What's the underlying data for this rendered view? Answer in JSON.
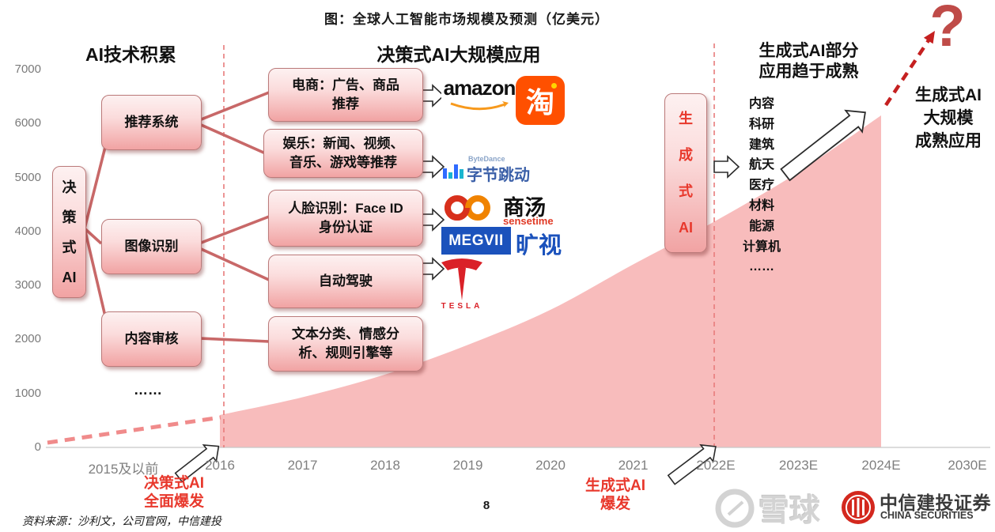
{
  "title": "图：全球人工智能市场规模及预测（亿美元）",
  "page_number": "8",
  "source_note": "资料来源：沙利文，公司官网，中信建投",
  "colors": {
    "area_fill": "#f8bcbc",
    "dashed_guide": "#e87b7b",
    "trend_dash": "#f08b8b",
    "connector": "#c86868",
    "red_text": "#e8382c",
    "question_mark": "#bf4b48",
    "red_dashed_arrow": "#c52020",
    "axis_label": "#7f7f7f",
    "box_border": "#bb7a7a"
  },
  "sections": {
    "left": {
      "heading": "AI技术积累",
      "root_box": [
        "决",
        "策",
        "式",
        "AI"
      ],
      "boxes": [
        "推荐系统",
        "图像识别",
        "内容审核"
      ],
      "more": "……"
    },
    "middle": {
      "heading": "决策式AI大规模应用",
      "boxes": [
        {
          "lines": [
            "电商：广告、商品",
            "推荐"
          ]
        },
        {
          "lines": [
            "娱乐：新闻、视频、",
            "音乐、游戏等推荐"
          ]
        },
        {
          "lines": [
            "人脸识别：Face ID",
            "身份认证"
          ]
        },
        {
          "lines": [
            "自动驾驶"
          ]
        },
        {
          "lines": [
            "文本分类、情感分",
            "析、规则引擎等"
          ]
        }
      ]
    },
    "right": {
      "heading_lines": [
        "生成式AI部分",
        "应用趋于成熟"
      ],
      "root_box": [
        "生",
        "成",
        "式",
        "AI"
      ],
      "applications": [
        "内容",
        "科研",
        "建筑",
        "航天",
        "医疗",
        "材料",
        "能源",
        "计算机",
        "……"
      ]
    },
    "far_right": {
      "lines": [
        "生成式AI",
        "大规模",
        "成熟应用"
      ],
      "question_mark": "?"
    }
  },
  "annotations": {
    "burst1_lines": [
      "决策式AI",
      "全面爆发"
    ],
    "burst2_lines": [
      "生成式AI",
      "爆发"
    ]
  },
  "logos": {
    "amazon": "amazon",
    "taobao": "淘",
    "bytedance_en": "ByteDance",
    "bytedance_cn": "字节跳动",
    "sensetime_cn": "商汤",
    "sensetime_en": "sensetime",
    "megvii_en": "MEGVII",
    "megvii_cn": "旷视",
    "tesla": "TESLA",
    "snowball": "雪球",
    "csc_cn": "中信建投证券",
    "csc_en": "CHINA SECURITIES"
  },
  "chart_data": {
    "type": "area",
    "title": "图：全球人工智能市场规模及预测（亿美元）",
    "categories": [
      "2015及以前",
      "2016",
      "2017",
      "2018",
      "2019",
      "2020",
      "2021",
      "2022E",
      "2023E",
      "2024E",
      "2030E"
    ],
    "series": [
      {
        "name": "全球人工智能市场规模（亿美元）",
        "x": [
          "2016",
          "2017",
          "2018",
          "2019",
          "2020",
          "2021",
          "2022E",
          "2023E",
          "2024E"
        ],
        "values": [
          600,
          930,
          1350,
          1900,
          2550,
          3390,
          4200,
          5100,
          6150
        ]
      }
    ],
    "yticks": [
      0,
      1000,
      2000,
      3000,
      4000,
      5000,
      6000,
      7000
    ],
    "ylim": [
      0,
      7000
    ],
    "grid": false,
    "legend": "none",
    "annotations": [
      "2016起决策式AI全面爆发",
      "2022E起生成式AI爆发",
      "2024E后走向未知(?)"
    ]
  }
}
